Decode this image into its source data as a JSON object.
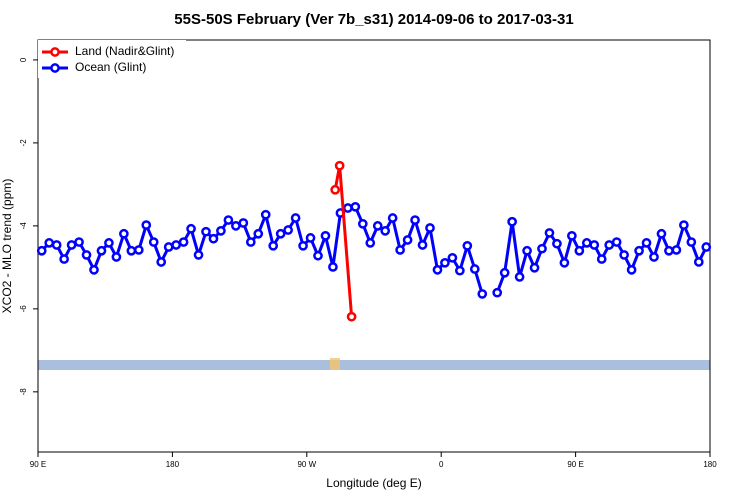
{
  "chart_data": {
    "type": "line",
    "title": "55S-50S February (Ver 7b_s31)   2014-09-06 to 2017-03-31",
    "x_label": "Longitude (deg E)",
    "y_label": "XCO2 - MLO trend (ppm)",
    "xlim": [
      90,
      540
    ],
    "xticks": [
      {
        "value": 90,
        "label": "90 E"
      },
      180,
      {
        "value": 270,
        "label": "90 W"
      },
      {
        "value": 360,
        "label": "0"
      },
      {
        "value": 450,
        "label": "90 E"
      },
      {
        "value": 540,
        "label": "180"
      }
    ],
    "ylim": [
      -9.45,
      0.48
    ],
    "yticks": [
      0,
      -2,
      -4,
      -6,
      -8
    ],
    "legend": "top-left",
    "series": [
      {
        "name": "Land (Nadir&Glint)",
        "color": "#ff0000",
        "x": [
          289,
          292,
          300
        ],
        "values": [
          -3.13,
          -2.55,
          -6.19
        ]
      },
      {
        "name": "Ocean (Glint)",
        "color": "#0000ff",
        "x": [
          92.5,
          97.5,
          102.5,
          107.5,
          112.5,
          117.5,
          122.5,
          127.5,
          132.5,
          137.5,
          142.5,
          147.5,
          152.5,
          157.5,
          162.5,
          167.5,
          172.5,
          177.5,
          182.5,
          187.5,
          192.5,
          197.5,
          202.5,
          207.5,
          212.5,
          217.5,
          222.5,
          227.5,
          232.5,
          237.5,
          242.5,
          247.5,
          252.5,
          257.5,
          262.5,
          267.5,
          272.5,
          277.5,
          282.5,
          287.5,
          292.5,
          297.5,
          302.5,
          307.5,
          312.5,
          317.5,
          322.5,
          327.5,
          332.5,
          337.5,
          342.5,
          347.5,
          352.5,
          357.5,
          362.5,
          367.5,
          372.5,
          377.5,
          382.5,
          387.5,
          392.5,
          397.5,
          402.5,
          407.5,
          412.5,
          417.5,
          422.5,
          427.5,
          432.5,
          437.5,
          442.5,
          447.5,
          452.5,
          457.5,
          462.5,
          467.5,
          472.5,
          477.5,
          482.5,
          487.5,
          492.5,
          497.5,
          502.5,
          507.5,
          512.5,
          517.5,
          522.5,
          527.5,
          532.5,
          537.5
        ],
        "values": [
          -4.6,
          -4.41,
          -4.46,
          -4.8,
          -4.46,
          -4.39,
          -4.7,
          -5.06,
          -4.6,
          -4.41,
          -4.75,
          -4.19,
          -4.6,
          -4.58,
          -3.98,
          -4.39,
          -4.87,
          -4.51,
          -4.46,
          -4.39,
          -4.07,
          -4.7,
          -4.14,
          -4.31,
          -4.12,
          -3.86,
          -4.0,
          -3.93,
          -4.39,
          -4.19,
          -3.73,
          -4.48,
          -4.19,
          -4.1,
          -3.81,
          -4.48,
          -4.29,
          -4.72,
          -4.24,
          -4.99,
          -3.69,
          -3.57,
          -3.54,
          -3.95,
          -4.41,
          -4.0,
          -4.12,
          -3.81,
          -4.58,
          -4.34,
          -3.86,
          -4.46,
          -4.05,
          -5.06,
          -4.89,
          -4.77,
          -5.08,
          -4.48,
          -5.04,
          -5.64,
          null,
          -5.61,
          -5.13,
          -3.9,
          -5.23,
          -4.6,
          -5.01,
          -4.55,
          -4.17,
          -4.43,
          -4.89,
          -4.24,
          -4.6,
          -4.41,
          -4.46,
          -4.8,
          -4.46,
          -4.39,
          -4.7,
          -5.06,
          -4.6,
          -4.41,
          -4.75,
          -4.19,
          -4.6,
          -4.58,
          -3.98,
          -4.39,
          -4.87,
          -4.51
        ]
      }
    ]
  }
}
